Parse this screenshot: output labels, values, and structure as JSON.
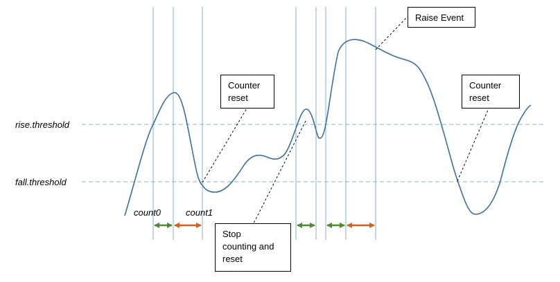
{
  "thresholds": {
    "rise_label": "rise.threshold",
    "fall_label": "fall.threshold"
  },
  "counts": {
    "count0_label": "count0",
    "count1_label": "count1"
  },
  "callouts": {
    "raise_event": "Raise Event",
    "counter_reset_1": "Counter\nreset",
    "counter_reset_2": "Counter\nreset",
    "stop_counting": "Stop\ncounting and\nreset"
  },
  "colors": {
    "signal": "#3a6ea5",
    "threshold": "#7fb2d9",
    "vertical": "#7fb2d9",
    "green_arrow": "#4e8a2e",
    "orange_arrow": "#d35f1a"
  }
}
